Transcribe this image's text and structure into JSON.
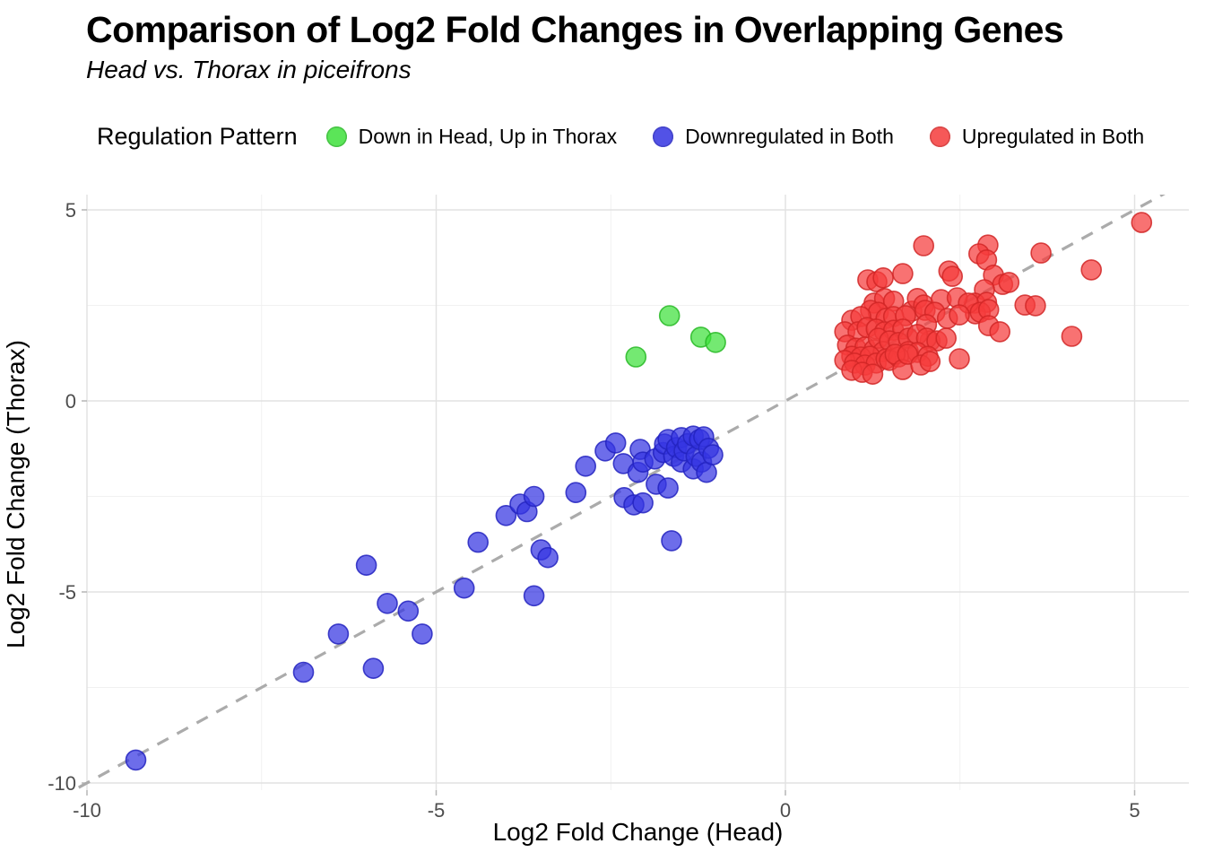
{
  "chart_data": {
    "type": "scatter",
    "title": "Comparison of Log2 Fold Changes in Overlapping Genes",
    "subtitle": "Head vs. Thorax in piceifrons",
    "xlabel": "Log2 Fold Change (Head)",
    "ylabel": "Log2 Fold Change (Thorax)",
    "legend_title": "Regulation Pattern",
    "legend_position": "top",
    "grid": "on",
    "xlim": [
      -10.2,
      5.8
    ],
    "ylim": [
      -10.2,
      5.4
    ],
    "xticks": [
      -10,
      -5,
      0,
      5
    ],
    "yticks": [
      5,
      0,
      -5,
      -10
    ],
    "minor_xticks": [
      -7.5,
      -2.5,
      2.5
    ],
    "minor_yticks": [
      2.5,
      -2.5,
      -7.5
    ],
    "reference_line": {
      "type": "identity y=x",
      "style": "dashed",
      "color": "#ababab"
    },
    "series": [
      {
        "name": "Down in Head, Up in Thorax",
        "color": "#3fe13c",
        "stroke": "#27b825",
        "points": [
          [
            -2.14,
            1.15
          ],
          [
            -1.66,
            2.23
          ],
          [
            -1.21,
            1.67
          ],
          [
            -1.0,
            1.53
          ]
        ]
      },
      {
        "name": "Downregulated in Both",
        "color": "#3535e2",
        "stroke": "#2323bf",
        "points": [
          [
            -9.3,
            -9.4
          ],
          [
            -6.9,
            -7.1
          ],
          [
            -6.4,
            -6.1
          ],
          [
            -6.0,
            -4.3
          ],
          [
            -5.9,
            -7.0
          ],
          [
            -5.7,
            -5.3
          ],
          [
            -5.4,
            -5.5
          ],
          [
            -5.2,
            -6.1
          ],
          [
            -4.6,
            -4.9
          ],
          [
            -4.4,
            -3.7
          ],
          [
            -4.0,
            -3.0
          ],
          [
            -3.8,
            -2.7
          ],
          [
            -3.7,
            -2.9
          ],
          [
            -3.6,
            -2.5
          ],
          [
            -3.5,
            -3.9
          ],
          [
            -3.4,
            -4.1
          ],
          [
            -3.6,
            -5.1
          ],
          [
            -3.0,
            -2.4
          ],
          [
            -2.86,
            -1.71
          ],
          [
            -2.58,
            -1.31
          ],
          [
            -2.43,
            -1.1
          ],
          [
            -2.32,
            -1.64
          ],
          [
            -2.31,
            -2.53
          ],
          [
            -2.17,
            -2.72
          ],
          [
            -2.11,
            -1.87
          ],
          [
            -2.08,
            -1.27
          ],
          [
            -2.04,
            -1.6
          ],
          [
            -2.04,
            -2.67
          ],
          [
            -1.87,
            -1.52
          ],
          [
            -1.85,
            -2.18
          ],
          [
            -1.75,
            -1.35
          ],
          [
            -1.73,
            -1.13
          ],
          [
            -1.68,
            -1.01
          ],
          [
            -1.68,
            -2.28
          ],
          [
            -1.63,
            -3.66
          ],
          [
            -1.6,
            -1.45
          ],
          [
            -1.56,
            -1.22
          ],
          [
            -1.49,
            -0.96
          ],
          [
            -1.49,
            -1.6
          ],
          [
            -1.45,
            -1.31
          ],
          [
            -1.4,
            -1.12
          ],
          [
            -1.32,
            -0.92
          ],
          [
            -1.32,
            -1.78
          ],
          [
            -1.28,
            -1.45
          ],
          [
            -1.23,
            -1.01
          ],
          [
            -1.2,
            -1.6
          ],
          [
            -1.17,
            -0.94
          ],
          [
            -1.13,
            -1.87
          ],
          [
            -1.1,
            -1.24
          ],
          [
            -1.04,
            -1.41
          ]
        ]
      },
      {
        "name": "Upregulated in Both",
        "color": "#f53c3c",
        "stroke": "#d12626",
        "points": [
          [
            5.1,
            4.67
          ],
          [
            1.98,
            4.06
          ],
          [
            2.9,
            4.08
          ],
          [
            3.66,
            3.87
          ],
          [
            4.38,
            3.43
          ],
          [
            2.77,
            3.85
          ],
          [
            2.88,
            3.69
          ],
          [
            1.18,
            3.17
          ],
          [
            1.31,
            3.12
          ],
          [
            1.4,
            3.22
          ],
          [
            1.68,
            3.33
          ],
          [
            2.34,
            3.4
          ],
          [
            2.39,
            3.26
          ],
          [
            2.98,
            3.29
          ],
          [
            3.11,
            3.05
          ],
          [
            3.2,
            3.1
          ],
          [
            2.85,
            2.91
          ],
          [
            3.43,
            2.51
          ],
          [
            3.58,
            2.49
          ],
          [
            4.1,
            1.69
          ],
          [
            2.71,
            2.56
          ],
          [
            2.88,
            2.58
          ],
          [
            2.72,
            2.28
          ],
          [
            1.27,
            2.56
          ],
          [
            1.42,
            2.68
          ],
          [
            1.55,
            2.61
          ],
          [
            1.81,
            2.35
          ],
          [
            1.89,
            2.68
          ],
          [
            1.98,
            2.51
          ],
          [
            2.23,
            2.65
          ],
          [
            2.46,
            2.7
          ],
          [
            2.62,
            2.56
          ],
          [
            2.0,
            2.37
          ],
          [
            2.14,
            2.32
          ],
          [
            2.32,
            2.16
          ],
          [
            2.49,
            2.25
          ],
          [
            2.79,
            2.32
          ],
          [
            2.91,
            2.39
          ],
          [
            1.22,
            2.37
          ],
          [
            1.33,
            2.32
          ],
          [
            0.95,
            2.11
          ],
          [
            1.08,
            2.21
          ],
          [
            1.44,
            2.16
          ],
          [
            1.55,
            2.21
          ],
          [
            1.72,
            2.23
          ],
          [
            2.02,
            2.0
          ],
          [
            2.91,
            1.97
          ],
          [
            3.07,
            1.81
          ],
          [
            0.85,
            1.81
          ],
          [
            1.04,
            1.81
          ],
          [
            1.17,
            1.92
          ],
          [
            1.3,
            1.88
          ],
          [
            1.42,
            1.81
          ],
          [
            1.55,
            1.85
          ],
          [
            1.68,
            1.88
          ],
          [
            2.07,
            1.57
          ],
          [
            0.89,
            1.46
          ],
          [
            1.01,
            1.38
          ],
          [
            1.14,
            1.41
          ],
          [
            1.27,
            1.34
          ],
          [
            1.33,
            1.64
          ],
          [
            1.4,
            1.29
          ],
          [
            1.49,
            1.57
          ],
          [
            1.62,
            1.53
          ],
          [
            1.76,
            1.64
          ],
          [
            1.89,
            1.74
          ],
          [
            2.02,
            1.64
          ],
          [
            2.17,
            1.57
          ],
          [
            2.3,
            1.64
          ],
          [
            1.76,
            1.29
          ],
          [
            1.89,
            1.27
          ],
          [
            2.04,
            1.17
          ],
          [
            0.95,
            1.17
          ],
          [
            1.08,
            1.15
          ],
          [
            1.21,
            1.17
          ],
          [
            0.85,
            1.06
          ],
          [
            0.99,
            0.99
          ],
          [
            1.14,
            0.94
          ],
          [
            1.3,
            0.99
          ],
          [
            1.44,
            1.1
          ],
          [
            1.49,
            1.06
          ],
          [
            1.62,
            1.15
          ],
          [
            1.57,
            1.22
          ],
          [
            1.68,
            0.82
          ],
          [
            1.75,
            1.22
          ],
          [
            1.94,
            0.94
          ],
          [
            2.07,
            1.03
          ],
          [
            2.49,
            1.1
          ],
          [
            0.95,
            0.8
          ],
          [
            1.1,
            0.75
          ],
          [
            1.25,
            0.7
          ]
        ]
      }
    ]
  },
  "colors": {
    "background": "#ffffff",
    "major_grid": "#e2e2e2",
    "minor_grid": "#f1f1f1",
    "tick_mark": "#b5b5b5",
    "tick_label": "#4d4d4d",
    "text": "#000000"
  }
}
